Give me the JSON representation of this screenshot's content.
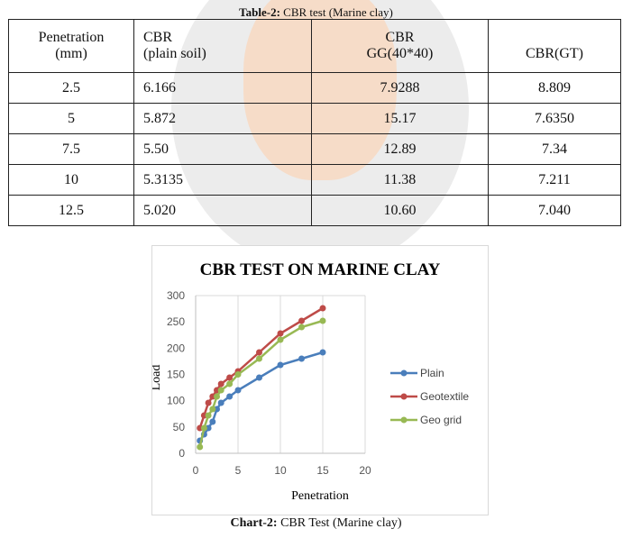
{
  "table": {
    "caption_label": "Table-2:",
    "caption_text": " CBR test (Marine clay)",
    "headers": [
      [
        "Penetration",
        "(mm)"
      ],
      [
        "CBR",
        "(plain soil)"
      ],
      [
        "CBR",
        "GG(40*40)"
      ],
      [
        "CBR(GT)"
      ]
    ],
    "rows": [
      [
        "2.5",
        "6.166",
        "7.9288",
        "8.809"
      ],
      [
        "5",
        "5.872",
        "15.17",
        "7.6350"
      ],
      [
        "7.5",
        "5.50",
        "12.89",
        "7.34"
      ],
      [
        "10",
        "5.3135",
        "11.38",
        "7.211"
      ],
      [
        "12.5",
        "5.020",
        "10.60",
        "7.040"
      ]
    ]
  },
  "chart_data": {
    "type": "line",
    "title": "CBR TEST ON MARINE CLAY",
    "xlabel": "Penetration",
    "ylabel": "Load",
    "xlim": [
      0,
      20
    ],
    "ylim": [
      0,
      300
    ],
    "xticks": [
      "0",
      "5",
      "10",
      "15",
      "20"
    ],
    "yticks": [
      "0",
      "50",
      "100",
      "150",
      "200",
      "250",
      "300"
    ],
    "grid": "vertical",
    "legend": "right",
    "x": [
      0.5,
      1,
      1.5,
      2,
      2.5,
      3,
      4,
      5,
      7.5,
      10,
      12.5,
      15
    ],
    "series": [
      {
        "name": "Plain",
        "color": "#4a7ebb",
        "values": [
          24,
          36,
          48,
          60,
          84,
          96,
          108,
          120,
          144,
          168,
          180,
          192
        ]
      },
      {
        "name": "Geotextile",
        "color": "#be4b48",
        "values": [
          48,
          72,
          96,
          108,
          120,
          132,
          144,
          156,
          192,
          228,
          252,
          276
        ]
      },
      {
        "name": "Geo grid",
        "color": "#98b954",
        "values": [
          12,
          48,
          72,
          84,
          108,
          120,
          132,
          150,
          180,
          216,
          240,
          252
        ]
      }
    ]
  },
  "chart_caption": {
    "label": "Chart-2:",
    "text": " CBR Test (Marine clay)"
  }
}
